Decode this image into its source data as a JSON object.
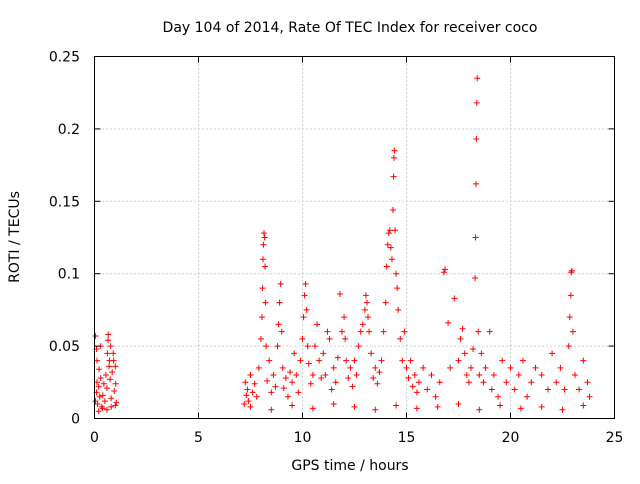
{
  "chart_data": {
    "type": "scatter",
    "title": "Day 104 of 2014, Rate Of TEC Index for receiver coco",
    "xlabel": "GPS time / hours",
    "ylabel": "ROTI / TECUs",
    "xlim": [
      0,
      25
    ],
    "ylim": [
      0,
      0.25
    ],
    "x_ticks": [
      0,
      5,
      10,
      15,
      20,
      25
    ],
    "x_tick_labels": [
      "0",
      "5",
      "10",
      "15",
      "20",
      "25"
    ],
    "y_ticks": [
      0,
      0.05,
      0.1,
      0.15,
      0.2,
      0.25
    ],
    "y_tick_labels": [
      "0",
      "0.05",
      "0.1",
      "0.15",
      "0.2",
      "0.25"
    ],
    "grid": true,
    "marker": "+",
    "color": "#ff0000",
    "series": [
      {
        "name": "ROTI",
        "points": [
          [
            0.05,
            0.012
          ],
          [
            0.1,
            0.018
          ],
          [
            0.12,
            0.025
          ],
          [
            0.15,
            0.01
          ],
          [
            0.2,
            0.022
          ],
          [
            0.22,
            0.034
          ],
          [
            0.25,
            0.015
          ],
          [
            0.3,
            0.028
          ],
          [
            0.05,
            0.057
          ],
          [
            0.1,
            0.048
          ],
          [
            0.12,
            0.04
          ],
          [
            0.3,
            0.05
          ],
          [
            0.35,
            0.008
          ],
          [
            0.4,
            0.016
          ],
          [
            0.45,
            0.024
          ],
          [
            0.5,
            0.012
          ],
          [
            0.55,
            0.03
          ],
          [
            0.6,
            0.021
          ],
          [
            0.62,
            0.045
          ],
          [
            0.65,
            0.054
          ],
          [
            0.66,
            0.058
          ],
          [
            0.7,
            0.036
          ],
          [
            0.72,
            0.04
          ],
          [
            0.75,
            0.027
          ],
          [
            0.78,
            0.05
          ],
          [
            0.8,
            0.014
          ],
          [
            0.85,
            0.032
          ],
          [
            0.9,
            0.045
          ],
          [
            0.92,
            0.04
          ],
          [
            0.95,
            0.019
          ],
          [
            1.0,
            0.036
          ],
          [
            1.02,
            0.024
          ],
          [
            1.05,
            0.011
          ],
          [
            0.2,
            0.005
          ],
          [
            0.4,
            0.007
          ],
          [
            0.6,
            0.006
          ],
          [
            0.8,
            0.008
          ],
          [
            1.0,
            0.009
          ],
          [
            7.2,
            0.01
          ],
          [
            7.25,
            0.025
          ],
          [
            7.3,
            0.016
          ],
          [
            7.35,
            0.02
          ],
          [
            7.4,
            0.012
          ],
          [
            7.5,
            0.03
          ],
          [
            7.6,
            0.018
          ],
          [
            7.7,
            0.024
          ],
          [
            7.8,
            0.015
          ],
          [
            7.9,
            0.035
          ],
          [
            8.0,
            0.055
          ],
          [
            8.05,
            0.07
          ],
          [
            8.08,
            0.09
          ],
          [
            8.1,
            0.11
          ],
          [
            8.12,
            0.12
          ],
          [
            8.15,
            0.128
          ],
          [
            8.18,
            0.125
          ],
          [
            8.2,
            0.105
          ],
          [
            8.22,
            0.08
          ],
          [
            8.25,
            0.05
          ],
          [
            8.3,
            0.026
          ],
          [
            8.4,
            0.04
          ],
          [
            8.5,
            0.018
          ],
          [
            8.6,
            0.03
          ],
          [
            8.7,
            0.022
          ],
          [
            8.8,
            0.05
          ],
          [
            8.85,
            0.065
          ],
          [
            8.9,
            0.08
          ],
          [
            8.95,
            0.093
          ],
          [
            9.0,
            0.06
          ],
          [
            9.05,
            0.035
          ],
          [
            9.1,
            0.021
          ],
          [
            9.2,
            0.028
          ],
          [
            9.3,
            0.015
          ],
          [
            9.4,
            0.032
          ],
          [
            9.5,
            0.025
          ],
          [
            9.6,
            0.045
          ],
          [
            9.7,
            0.03
          ],
          [
            9.8,
            0.018
          ],
          [
            9.9,
            0.04
          ],
          [
            10.0,
            0.055
          ],
          [
            10.05,
            0.07
          ],
          [
            10.1,
            0.085
          ],
          [
            10.15,
            0.093
          ],
          [
            10.2,
            0.075
          ],
          [
            10.25,
            0.05
          ],
          [
            10.3,
            0.038
          ],
          [
            10.4,
            0.024
          ],
          [
            10.5,
            0.03
          ],
          [
            10.6,
            0.05
          ],
          [
            10.7,
            0.065
          ],
          [
            10.8,
            0.04
          ],
          [
            10.9,
            0.028
          ],
          [
            11.0,
            0.045
          ],
          [
            11.1,
            0.03
          ],
          [
            11.2,
            0.06
          ],
          [
            11.3,
            0.055
          ],
          [
            11.4,
            0.02
          ],
          [
            11.5,
            0.035
          ],
          [
            11.6,
            0.025
          ],
          [
            11.7,
            0.042
          ],
          [
            11.8,
            0.086
          ],
          [
            11.9,
            0.06
          ],
          [
            12.0,
            0.07
          ],
          [
            12.05,
            0.055
          ],
          [
            12.1,
            0.04
          ],
          [
            12.2,
            0.028
          ],
          [
            12.3,
            0.035
          ],
          [
            12.4,
            0.022
          ],
          [
            12.5,
            0.04
          ],
          [
            12.6,
            0.03
          ],
          [
            12.7,
            0.05
          ],
          [
            12.8,
            0.06
          ],
          [
            12.9,
            0.065
          ],
          [
            13.0,
            0.075
          ],
          [
            13.05,
            0.085
          ],
          [
            13.1,
            0.08
          ],
          [
            13.15,
            0.07
          ],
          [
            13.2,
            0.06
          ],
          [
            13.3,
            0.045
          ],
          [
            13.4,
            0.028
          ],
          [
            13.5,
            0.035
          ],
          [
            13.6,
            0.024
          ],
          [
            13.7,
            0.032
          ],
          [
            13.8,
            0.04
          ],
          [
            13.9,
            0.06
          ],
          [
            14.0,
            0.08
          ],
          [
            14.05,
            0.105
          ],
          [
            14.1,
            0.12
          ],
          [
            14.15,
            0.128
          ],
          [
            14.2,
            0.13
          ],
          [
            14.25,
            0.118
          ],
          [
            14.3,
            0.11
          ],
          [
            14.35,
            0.144
          ],
          [
            14.38,
            0.167
          ],
          [
            14.4,
            0.18
          ],
          [
            14.42,
            0.185
          ],
          [
            14.45,
            0.13
          ],
          [
            14.5,
            0.1
          ],
          [
            14.55,
            0.09
          ],
          [
            14.6,
            0.075
          ],
          [
            14.7,
            0.055
          ],
          [
            14.8,
            0.04
          ],
          [
            14.9,
            0.06
          ],
          [
            15.0,
            0.035
          ],
          [
            15.1,
            0.028
          ],
          [
            15.2,
            0.04
          ],
          [
            15.3,
            0.022
          ],
          [
            15.4,
            0.03
          ],
          [
            15.5,
            0.018
          ],
          [
            15.6,
            0.025
          ],
          [
            15.8,
            0.035
          ],
          [
            16.0,
            0.02
          ],
          [
            16.2,
            0.03
          ],
          [
            16.4,
            0.015
          ],
          [
            16.6,
            0.025
          ],
          [
            16.8,
            0.101
          ],
          [
            16.85,
            0.103
          ],
          [
            17.0,
            0.066
          ],
          [
            17.1,
            0.035
          ],
          [
            17.3,
            0.083
          ],
          [
            17.5,
            0.04
          ],
          [
            17.6,
            0.055
          ],
          [
            17.7,
            0.062
          ],
          [
            17.8,
            0.045
          ],
          [
            17.9,
            0.03
          ],
          [
            18.0,
            0.025
          ],
          [
            18.1,
            0.035
          ],
          [
            18.2,
            0.048
          ],
          [
            18.3,
            0.097
          ],
          [
            18.32,
            0.125
          ],
          [
            18.34,
            0.162
          ],
          [
            18.36,
            0.193
          ],
          [
            18.38,
            0.218
          ],
          [
            18.4,
            0.235
          ],
          [
            18.45,
            0.06
          ],
          [
            18.5,
            0.03
          ],
          [
            18.6,
            0.045
          ],
          [
            18.7,
            0.025
          ],
          [
            18.8,
            0.035
          ],
          [
            19.0,
            0.06
          ],
          [
            19.1,
            0.02
          ],
          [
            19.2,
            0.03
          ],
          [
            19.4,
            0.015
          ],
          [
            19.6,
            0.04
          ],
          [
            19.8,
            0.025
          ],
          [
            20.0,
            0.035
          ],
          [
            20.2,
            0.02
          ],
          [
            20.4,
            0.03
          ],
          [
            20.6,
            0.04
          ],
          [
            20.8,
            0.015
          ],
          [
            21.0,
            0.025
          ],
          [
            21.2,
            0.035
          ],
          [
            21.5,
            0.03
          ],
          [
            21.8,
            0.02
          ],
          [
            22.0,
            0.045
          ],
          [
            22.2,
            0.025
          ],
          [
            22.4,
            0.035
          ],
          [
            22.6,
            0.02
          ],
          [
            22.8,
            0.05
          ],
          [
            22.85,
            0.07
          ],
          [
            22.9,
            0.085
          ],
          [
            22.92,
            0.101
          ],
          [
            22.95,
            0.102
          ],
          [
            23.0,
            0.06
          ],
          [
            23.1,
            0.03
          ],
          [
            23.3,
            0.02
          ],
          [
            23.5,
            0.04
          ],
          [
            23.7,
            0.025
          ],
          [
            23.8,
            0.015
          ],
          [
            7.5,
            0.008
          ],
          [
            8.5,
            0.006
          ],
          [
            9.5,
            0.009
          ],
          [
            10.5,
            0.007
          ],
          [
            11.5,
            0.01
          ],
          [
            12.5,
            0.008
          ],
          [
            13.5,
            0.006
          ],
          [
            14.5,
            0.009
          ],
          [
            15.5,
            0.007
          ],
          [
            16.5,
            0.008
          ],
          [
            17.5,
            0.01
          ],
          [
            18.5,
            0.006
          ],
          [
            19.5,
            0.009
          ],
          [
            20.5,
            0.007
          ],
          [
            21.5,
            0.008
          ],
          [
            22.5,
            0.006
          ],
          [
            23.5,
            0.009
          ]
        ]
      }
    ]
  }
}
